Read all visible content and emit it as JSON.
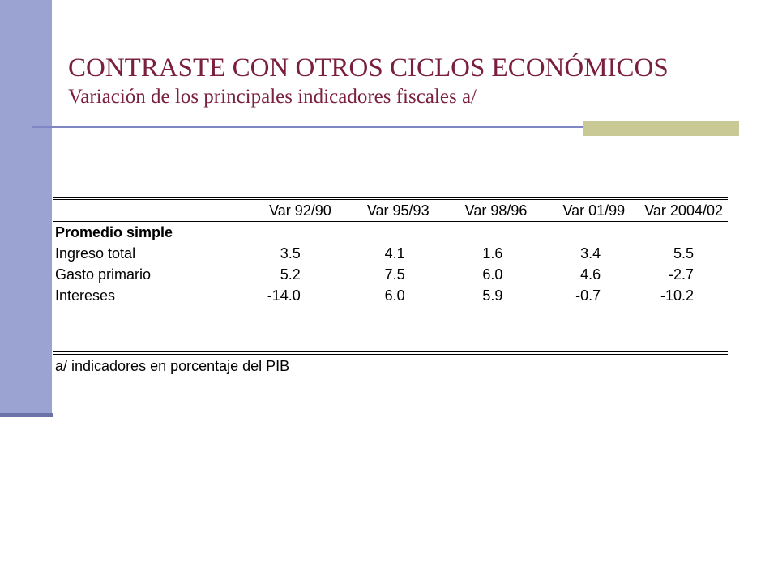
{
  "slide": {
    "title": "CONTRASTE CON OTROS CICLOS ECONÓMICOS",
    "subtitle": "Variación de los principales indicadores fiscales a/"
  },
  "table": {
    "columns": [
      "Var 92/90",
      "Var 95/93",
      "Var 98/96",
      "Var 01/99",
      "Var 2004/02"
    ],
    "section_label": "Promedio simple",
    "rows": [
      {
        "label": "Ingreso total",
        "values": [
          "3.5",
          "4.1",
          "1.6",
          "3.4",
          "5.5"
        ]
      },
      {
        "label": "Gasto primario",
        "values": [
          "5.2",
          "7.5",
          "6.0",
          "4.6",
          "-2.7"
        ]
      },
      {
        "label": "Intereses",
        "values": [
          "-14.0",
          "6.0",
          "5.9",
          "-0.7",
          "-10.2"
        ]
      }
    ],
    "footnote": "a/ indicadores en porcentaje del PIB"
  }
}
